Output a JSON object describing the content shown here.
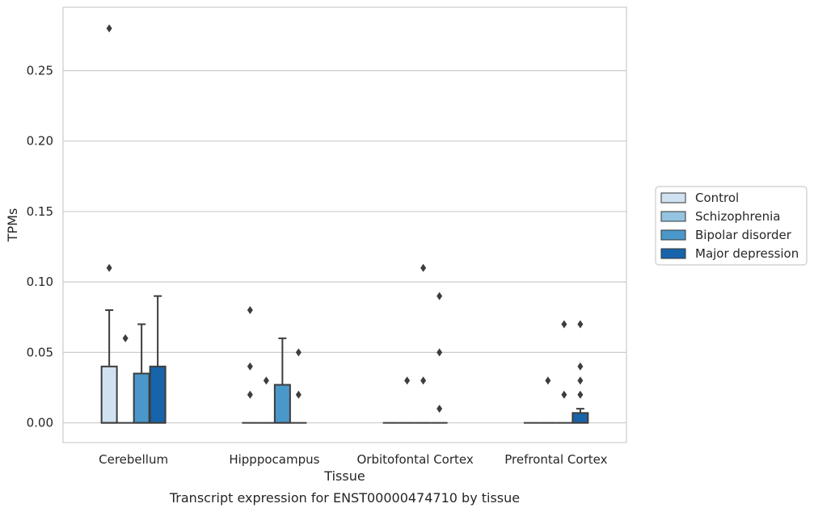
{
  "chart_data": {
    "type": "box",
    "title": "Transcript expression for ENST00000474710 by tissue",
    "xlabel": "Tissue",
    "ylabel": "TPMs",
    "ylim": [
      -0.014,
      0.295
    ],
    "yticks": [
      0.0,
      0.05,
      0.1,
      0.15,
      0.2,
      0.25
    ],
    "ytick_labels": [
      "0.00",
      "0.05",
      "0.10",
      "0.15",
      "0.20",
      "0.25"
    ],
    "grid": "horizontal",
    "legend_position": "right",
    "categories": [
      "Cerebellum",
      "Hipppocampus",
      "Orbitofontal Cortex",
      "Prefrontal Cortex"
    ],
    "series": [
      {
        "name": "Control",
        "color": "#d0e1f2",
        "boxes": [
          {
            "q1": 0.0,
            "median": 0.0,
            "q3": 0.04,
            "whisker_low": 0.0,
            "whisker_high": 0.08,
            "outliers": [
              0.11,
              0.28
            ]
          },
          {
            "q1": 0.0,
            "median": 0.0,
            "q3": 0.0,
            "whisker_low": 0.0,
            "whisker_high": 0.0,
            "outliers": [
              0.02,
              0.04,
              0.08
            ]
          },
          {
            "q1": 0.0,
            "median": 0.0,
            "q3": 0.0,
            "whisker_low": 0.0,
            "whisker_high": 0.0,
            "outliers": []
          },
          {
            "q1": 0.0,
            "median": 0.0,
            "q3": 0.0,
            "whisker_low": 0.0,
            "whisker_high": 0.0,
            "outliers": []
          }
        ]
      },
      {
        "name": "Schizophrenia",
        "color": "#94c4df",
        "boxes": [
          {
            "q1": 0.0,
            "median": 0.0,
            "q3": 0.0,
            "whisker_low": 0.0,
            "whisker_high": 0.0,
            "outliers": [
              0.06
            ]
          },
          {
            "q1": 0.0,
            "median": 0.0,
            "q3": 0.0,
            "whisker_low": 0.0,
            "whisker_high": 0.0,
            "outliers": [
              0.03
            ]
          },
          {
            "q1": 0.0,
            "median": 0.0,
            "q3": 0.0,
            "whisker_low": 0.0,
            "whisker_high": 0.0,
            "outliers": [
              0.03
            ]
          },
          {
            "q1": 0.0,
            "median": 0.0,
            "q3": 0.0,
            "whisker_low": 0.0,
            "whisker_high": 0.0,
            "outliers": [
              0.03
            ]
          }
        ]
      },
      {
        "name": "Bipolar disorder",
        "color": "#4a98c9",
        "boxes": [
          {
            "q1": 0.0,
            "median": 0.0,
            "q3": 0.035,
            "whisker_low": 0.0,
            "whisker_high": 0.07,
            "outliers": []
          },
          {
            "q1": 0.0,
            "median": 0.0,
            "q3": 0.027,
            "whisker_low": 0.0,
            "whisker_high": 0.06,
            "outliers": []
          },
          {
            "q1": 0.0,
            "median": 0.0,
            "q3": 0.0,
            "whisker_low": 0.0,
            "whisker_high": 0.0,
            "outliers": [
              0.03,
              0.11
            ]
          },
          {
            "q1": 0.0,
            "median": 0.0,
            "q3": 0.0,
            "whisker_low": 0.0,
            "whisker_high": 0.0,
            "outliers": [
              0.02,
              0.07
            ]
          }
        ]
      },
      {
        "name": "Major depression",
        "color": "#1764ab",
        "boxes": [
          {
            "q1": 0.0,
            "median": 0.0,
            "q3": 0.04,
            "whisker_low": 0.0,
            "whisker_high": 0.09,
            "outliers": []
          },
          {
            "q1": 0.0,
            "median": 0.0,
            "q3": 0.0,
            "whisker_low": 0.0,
            "whisker_high": 0.0,
            "outliers": [
              0.02,
              0.05
            ]
          },
          {
            "q1": 0.0,
            "median": 0.0,
            "q3": 0.0,
            "whisker_low": 0.0,
            "whisker_high": 0.0,
            "outliers": [
              0.01,
              0.05,
              0.09
            ]
          },
          {
            "q1": 0.0,
            "median": 0.0,
            "q3": 0.007,
            "whisker_low": 0.0,
            "whisker_high": 0.01,
            "outliers": [
              0.02,
              0.03,
              0.04,
              0.07
            ]
          }
        ]
      }
    ]
  }
}
